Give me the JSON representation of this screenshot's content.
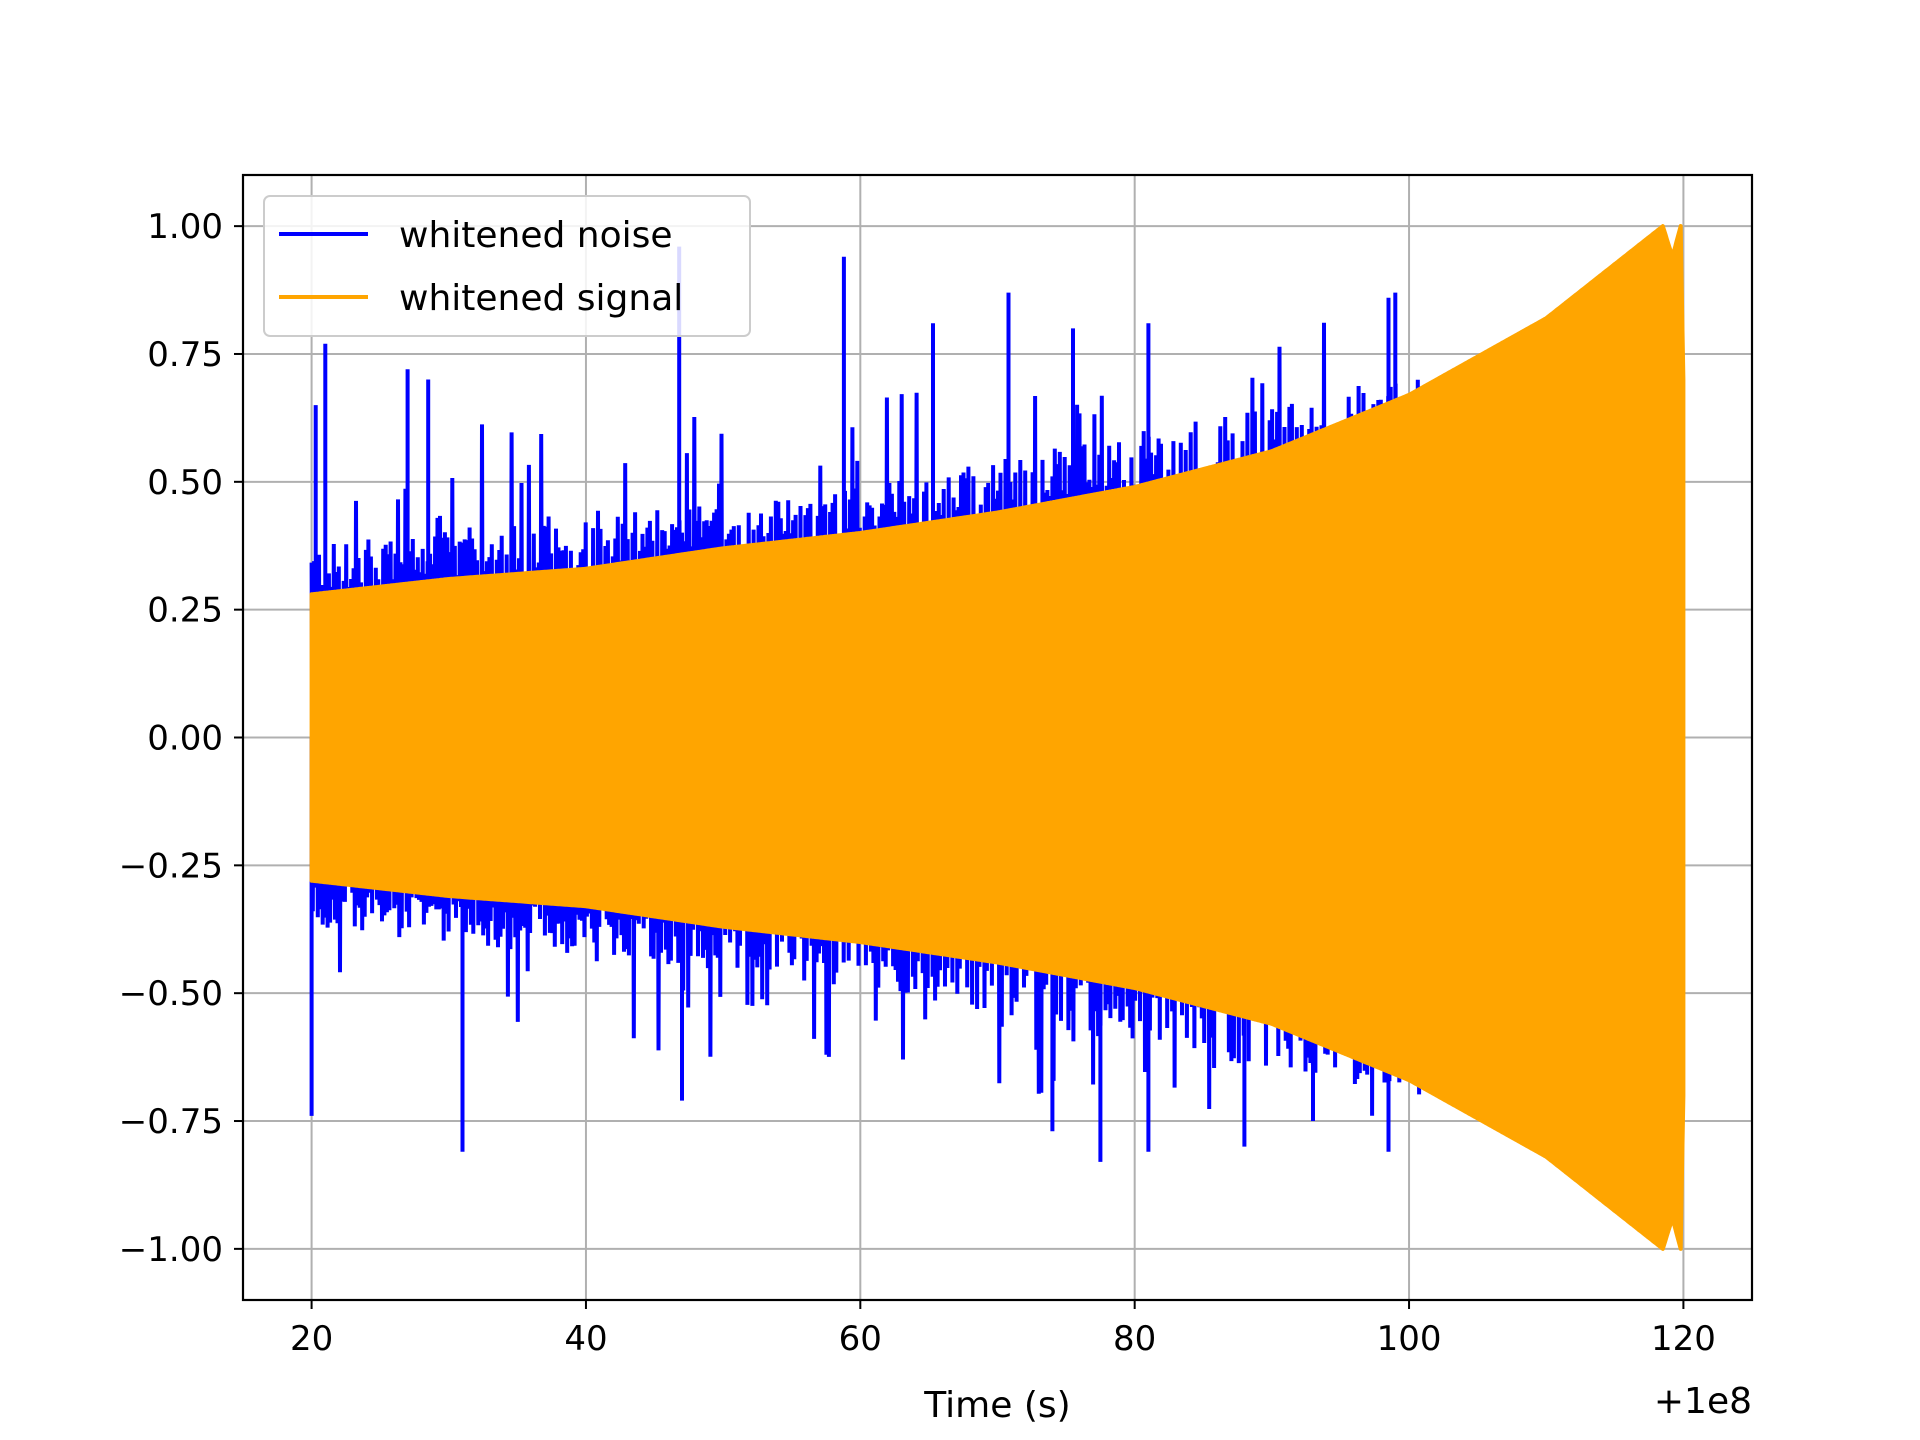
{
  "chart_data": {
    "type": "line",
    "title": "",
    "xlabel": "Time (s)",
    "ylabel": "",
    "x_offset_label": "+1e8",
    "xlim": [
      15,
      125
    ],
    "ylim": [
      -1.1,
      1.1
    ],
    "x_ticks": [
      20,
      40,
      60,
      80,
      100,
      120
    ],
    "y_ticks": [
      1.0,
      0.75,
      0.5,
      0.25,
      0.0,
      -0.25,
      -0.5,
      -0.75,
      -1.0
    ],
    "x_tick_labels": [
      "20",
      "40",
      "60",
      "80",
      "100",
      "120"
    ],
    "y_tick_labels": [
      "1.00",
      "0.75",
      "0.50",
      "0.25",
      "0.00",
      "−0.25",
      "−0.50",
      "−0.75",
      "−1.00"
    ],
    "grid": true,
    "legend_position": "top-left",
    "series": [
      {
        "name": "whitened noise",
        "color": "#0000ff",
        "x_range": [
          20,
          101.5
        ],
        "band_upper": [
          [
            20,
            0.29
          ],
          [
            40,
            0.33
          ],
          [
            60,
            0.38
          ],
          [
            80,
            0.46
          ],
          [
            100,
            0.54
          ]
        ],
        "band_lower": [
          [
            20,
            -0.29
          ],
          [
            40,
            -0.33
          ],
          [
            60,
            -0.38
          ],
          [
            80,
            -0.46
          ],
          [
            100,
            -0.54
          ]
        ],
        "peaks_upper": [
          [
            20.3,
            0.65
          ],
          [
            21.0,
            0.77
          ],
          [
            27.0,
            0.72
          ],
          [
            28.5,
            0.7
          ],
          [
            46.8,
            0.96
          ],
          [
            58.8,
            0.94
          ],
          [
            70.8,
            0.87
          ],
          [
            65.3,
            0.81
          ],
          [
            75.5,
            0.8
          ],
          [
            81.0,
            0.81
          ],
          [
            98.5,
            0.86
          ],
          [
            99.0,
            0.87
          ],
          [
            93.8,
            0.72
          ]
        ],
        "peaks_lower": [
          [
            20.0,
            -0.74
          ],
          [
            31.0,
            -0.81
          ],
          [
            47.0,
            -0.71
          ],
          [
            77.5,
            -0.83
          ],
          [
            74.0,
            -0.77
          ],
          [
            81.0,
            -0.81
          ],
          [
            98.5,
            -0.81
          ],
          [
            93.0,
            -0.75
          ],
          [
            88.0,
            -0.8
          ]
        ]
      },
      {
        "name": "whitened signal",
        "color": "#ffa500",
        "x_range": [
          20,
          120
        ],
        "envelope": [
          [
            20,
            0.28
          ],
          [
            30,
            0.31
          ],
          [
            40,
            0.33
          ],
          [
            50,
            0.37
          ],
          [
            60,
            0.4
          ],
          [
            70,
            0.44
          ],
          [
            80,
            0.49
          ],
          [
            90,
            0.56
          ],
          [
            100,
            0.67
          ],
          [
            110,
            0.82
          ],
          [
            118.5,
            1.0
          ],
          [
            119.2,
            0.94
          ],
          [
            119.8,
            1.0
          ],
          [
            120,
            0.7
          ]
        ]
      }
    ]
  }
}
